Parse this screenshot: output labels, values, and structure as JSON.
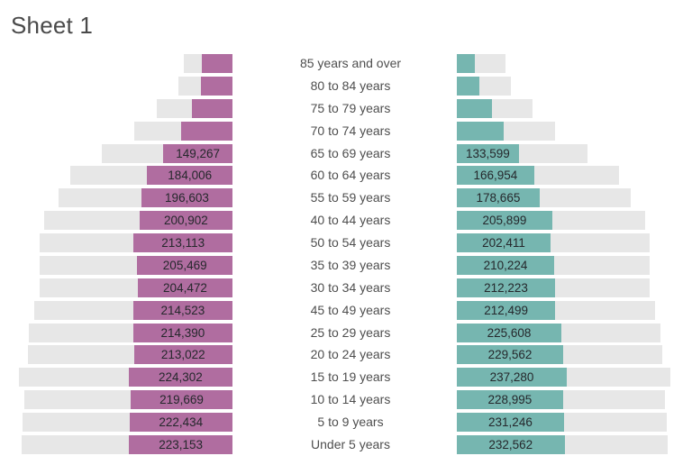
{
  "title": "Sheet 1",
  "colors": {
    "left_bar": "#b06da0",
    "right_bar": "#76b6b0",
    "track_bar": "#e7e7e7",
    "bar_label_text": "#25282c",
    "age_label_text": "#4e4e4e",
    "title_text": "#4a4a4a"
  },
  "chart_data": {
    "type": "bar",
    "subtype": "population_pyramid",
    "title": "Sheet 1",
    "orientation": "horizontal",
    "axes_hidden": true,
    "layout_hints": {
      "left_bars_anchored_right": true,
      "right_bars_anchored_left": true,
      "gray_track_equals_opposite_series_value": true,
      "rows_top_to_bottom": true,
      "legend": "none"
    },
    "categories": [
      "85 years and over",
      "80 to 84 years",
      "75 to 79 years",
      "70 to 74 years",
      "65 to 69 years",
      "60 to 64 years",
      "55 to 59 years",
      "40 to 44 years",
      "50 to 54 years",
      "35 to 39 years",
      "30 to 34 years",
      "45 to 49 years",
      "25 to 29 years",
      "20 to 24 years",
      "15 to 19 years",
      "10 to 14 years",
      "5 to 9 years",
      "Under 5 years"
    ],
    "series": [
      {
        "name": "left",
        "color": "#b06da0",
        "values": [
          66000,
          68000,
          87000,
          110500,
          149267,
          184006,
          196603,
          200902,
          213113,
          205469,
          204472,
          214523,
          214390,
          213022,
          224302,
          219669,
          222434,
          223153
        ],
        "value_labels": [
          "",
          "",
          "",
          "",
          "149,267",
          "184,006",
          "196,603",
          "200,902",
          "213,113",
          "205,469",
          "204,472",
          "214,523",
          "214,390",
          "213,022",
          "224,302",
          "219,669",
          "222,434",
          "223,153"
        ]
      },
      {
        "name": "right",
        "color": "#76b6b0",
        "values": [
          39000,
          48500,
          76000,
          101000,
          133599,
          166954,
          178665,
          205899,
          202411,
          210224,
          212223,
          212499,
          225608,
          229562,
          237280,
          228995,
          231246,
          232562
        ],
        "value_labels": [
          "",
          "",
          "",
          "",
          "133,599",
          "166,954",
          "178,665",
          "205,899",
          "202,411",
          "210,224",
          "212,223",
          "212,499",
          "225,608",
          "229,562",
          "237,280",
          "228,995",
          "231,246",
          "232,562"
        ]
      }
    ]
  }
}
